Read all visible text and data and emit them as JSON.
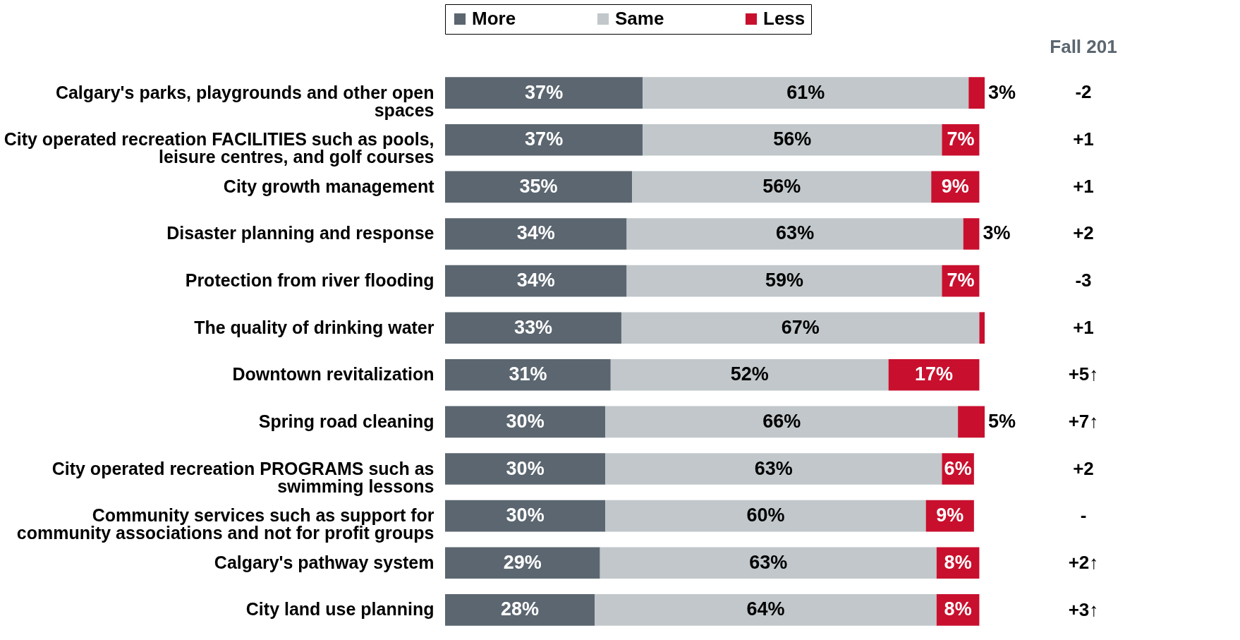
{
  "chart_data": {
    "type": "bar",
    "orientation": "horizontal",
    "stacked": true,
    "legend": "top",
    "categories": [
      "Calgary's parks, playgrounds and other open spaces",
      "City operated recreation FACILITIES such as pools, leisure centres, and golf courses",
      "City growth management",
      "Disaster planning and response",
      "Protection from river flooding",
      "The quality of drinking water",
      "Downtown revitalization",
      "Spring road cleaning",
      "City operated recreation PROGRAMS such as swimming lessons",
      "Community services such as support for community associations and not for profit groups",
      "Calgary's pathway system",
      "City land use planning"
    ],
    "series": [
      {
        "name": "More",
        "color": "#5b6670",
        "values": [
          37,
          37,
          35,
          34,
          34,
          33,
          31,
          30,
          30,
          30,
          29,
          28
        ],
        "value_labels": [
          "37%",
          "37%",
          "35%",
          "34%",
          "34%",
          "33%",
          "31%",
          "30%",
          "30%",
          "30%",
          "29%",
          "28%"
        ]
      },
      {
        "name": "Same",
        "color": "#c1c7ca",
        "values": [
          61,
          56,
          56,
          63,
          59,
          67,
          52,
          66,
          63,
          60,
          63,
          64
        ],
        "value_labels": [
          "61%",
          "56%",
          "56%",
          "63%",
          "59%",
          "67%",
          "52%",
          "66%",
          "63%",
          "60%",
          "63%",
          "64%"
        ]
      },
      {
        "name": "Less",
        "color": "#c8102e",
        "values": [
          3,
          7,
          9,
          3,
          7,
          1,
          17,
          5,
          6,
          9,
          8,
          8
        ],
        "value_labels": [
          "3%",
          "7%",
          "9%",
          "3%",
          "7%",
          null,
          "17%",
          "5%",
          "6%",
          "9%",
          "8%",
          "8%"
        ]
      }
    ],
    "annotations": [
      "Fall 201",
      "-2",
      "+1",
      "+1",
      "+2",
      "-3",
      "+1",
      "+5↑",
      "+7↑",
      "+2",
      "-",
      "+2↑",
      "+3↑"
    ]
  }
}
